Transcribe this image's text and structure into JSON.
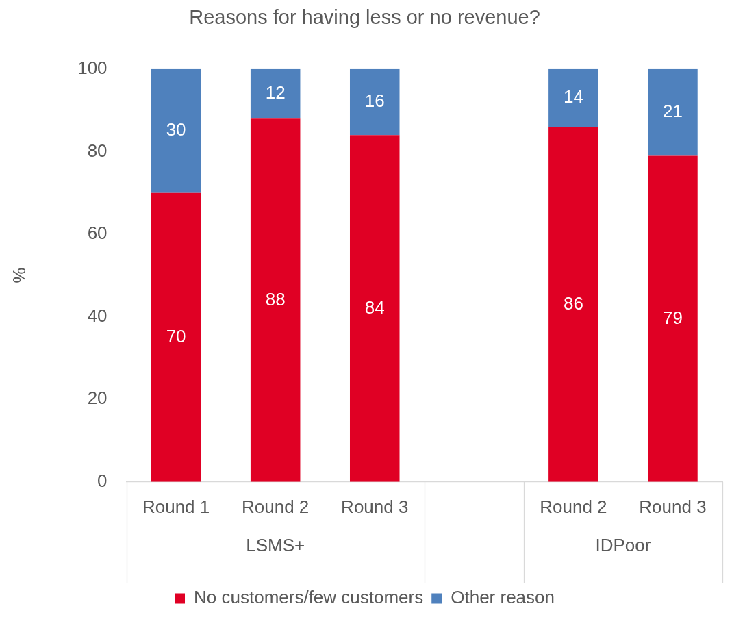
{
  "chart_data": {
    "type": "bar",
    "title": "Reasons for having less or no revenue?",
    "ylabel": "%",
    "categories": [
      "Round 1",
      "Round 2",
      "Round 3",
      null,
      "Round 2",
      "Round 3"
    ],
    "series": [
      {
        "name": "No customers/few customers",
        "color": "#e00024",
        "values": [
          70,
          88,
          84,
          null,
          86,
          79
        ]
      },
      {
        "name": "Other reason",
        "color": "#4f81bd",
        "values": [
          30,
          12,
          16,
          null,
          14,
          21
        ]
      }
    ],
    "stacked": true,
    "ylim": [
      0,
      100
    ],
    "yticks": [
      0,
      20,
      40,
      60,
      80,
      100
    ],
    "grid": false,
    "legend": "bottom",
    "data_labels": true,
    "annotations": [
      "LSMS+",
      "IDPoor"
    ]
  }
}
